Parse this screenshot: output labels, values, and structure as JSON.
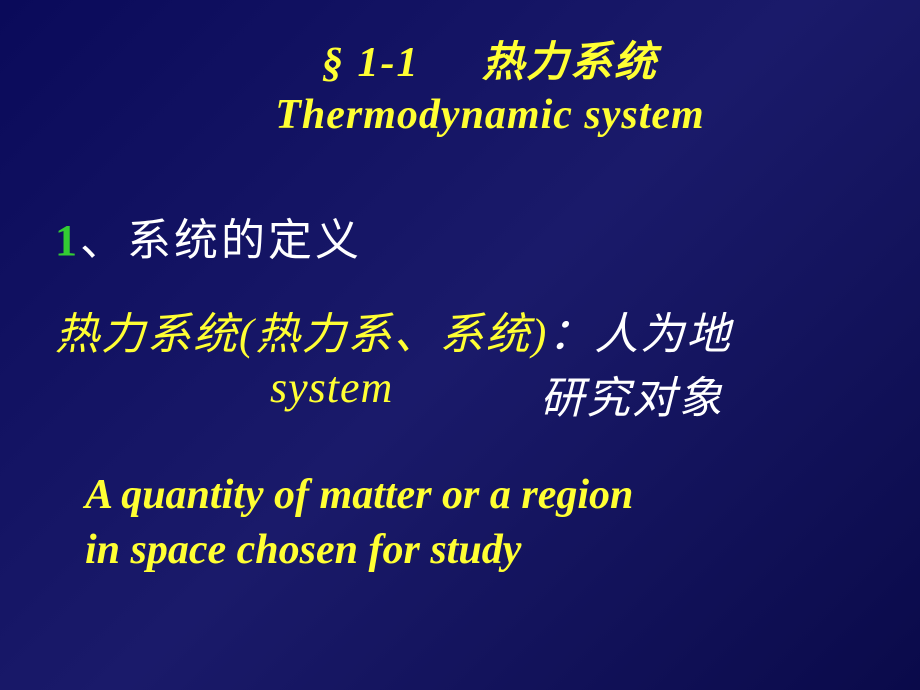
{
  "colors": {
    "yellow": "#ffff33",
    "white": "#ffffff",
    "green": "#33cc33"
  },
  "title": {
    "section_symbol": "§",
    "section_number": "1-1",
    "chinese": "热力系统",
    "english": "Thermodynamic system"
  },
  "heading": {
    "number": "1",
    "separator": "、",
    "text": "系统的定义"
  },
  "definition": {
    "term": "热力系统(热力系、系统)",
    "separator": "：",
    "right_top": "人为地",
    "english_word": "system",
    "right_bottom": "研究对象"
  },
  "english_definition": {
    "line1": "A quantity of matter or a region",
    "line2": "in space chosen for study"
  }
}
